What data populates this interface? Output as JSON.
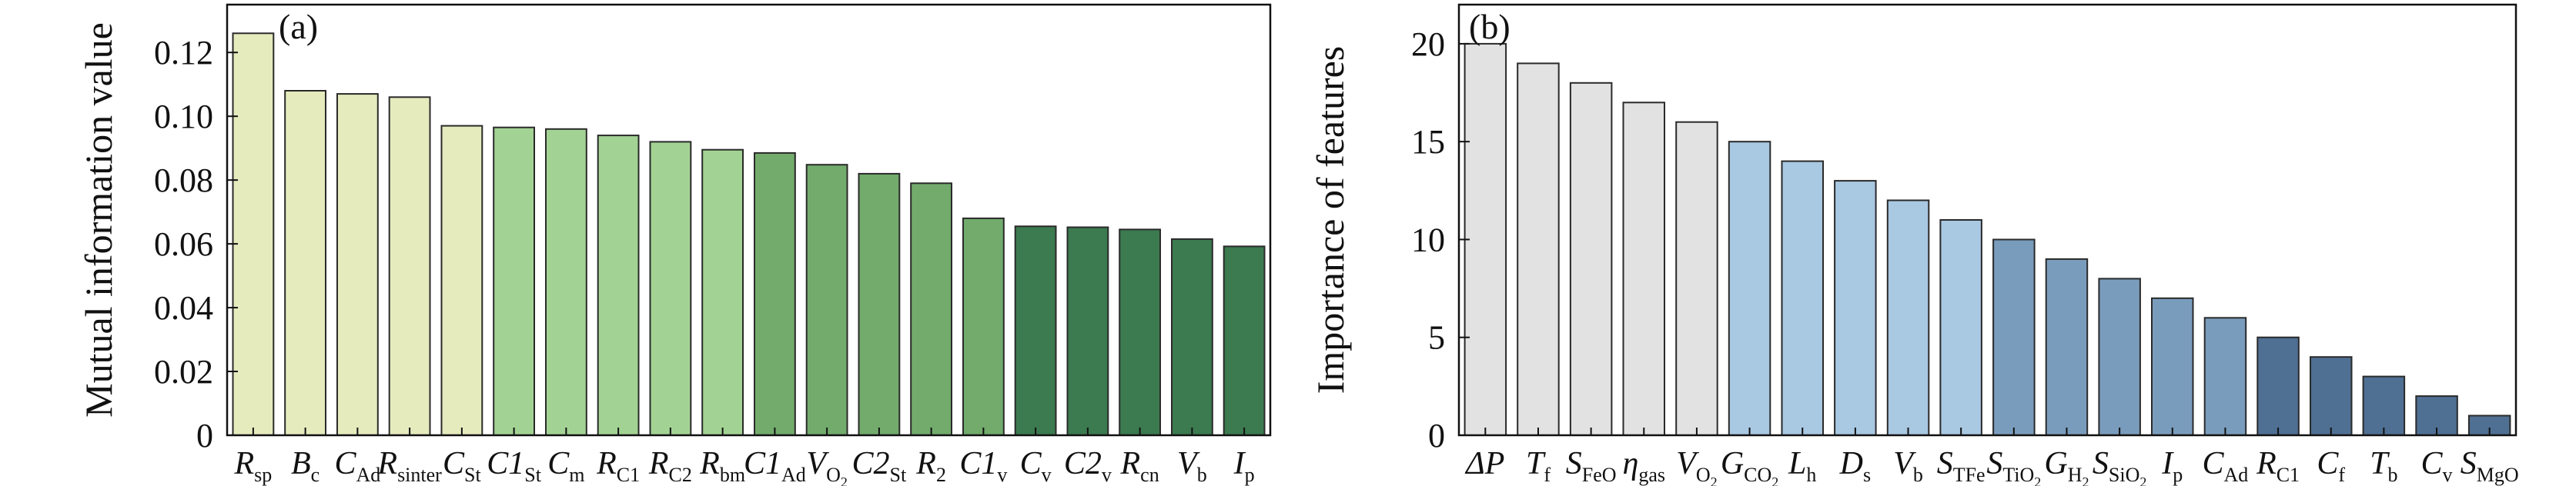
{
  "chart_data": [
    {
      "type": "bar",
      "panel_label": "(a)",
      "ylabel": "Mutual information value",
      "ylim": [
        0,
        0.135
      ],
      "yticks": [
        "0",
        "0.02",
        "0.04",
        "0.06",
        "0.08",
        "0.10",
        "0.12"
      ],
      "categories": [
        {
          "main": "R",
          "sub": "sp",
          "value": 0.126,
          "color": "#e6ebbe"
        },
        {
          "main": "B",
          "sub": "c",
          "value": 0.108,
          "color": "#e6ebbe"
        },
        {
          "main": "C",
          "sub": "Ad",
          "value": 0.107,
          "color": "#e6ebbe"
        },
        {
          "main": "R",
          "sub": "sinter",
          "value": 0.106,
          "color": "#e6ebbe"
        },
        {
          "main": "C",
          "sub": "St",
          "value": 0.097,
          "color": "#e6ebbe"
        },
        {
          "main": "C1",
          "sub": "St",
          "value": 0.0965,
          "color": "#a3d394"
        },
        {
          "main": "C",
          "sub": "m",
          "value": 0.096,
          "color": "#a3d394"
        },
        {
          "main": "R",
          "sub": "C1",
          "value": 0.094,
          "color": "#a3d394"
        },
        {
          "main": "R",
          "sub": "C2",
          "value": 0.092,
          "color": "#a3d394"
        },
        {
          "main": "R",
          "sub": "bm",
          "value": 0.0895,
          "color": "#a3d394"
        },
        {
          "main": "C1",
          "sub": "Ad",
          "value": 0.0885,
          "color": "#72ab6c"
        },
        {
          "main": "V",
          "sub": "O",
          "subsub": "2",
          "value": 0.0848,
          "color": "#72ab6c"
        },
        {
          "main": "C2",
          "sub": "St",
          "value": 0.082,
          "color": "#72ab6c"
        },
        {
          "main": "R",
          "sub": "2",
          "value": 0.079,
          "color": "#72ab6c"
        },
        {
          "main": "C1",
          "sub": "v",
          "value": 0.068,
          "color": "#72ab6c"
        },
        {
          "main": "C",
          "sub": "v",
          "value": 0.0655,
          "color": "#3c7a4f"
        },
        {
          "main": "C2",
          "sub": "v",
          "value": 0.0652,
          "color": "#3c7a4f"
        },
        {
          "main": "R",
          "sub": "cn",
          "value": 0.0645,
          "color": "#3c7a4f"
        },
        {
          "main": "V",
          "sub": "b",
          "value": 0.0615,
          "color": "#3c7a4f"
        },
        {
          "main": "I",
          "sub": "p",
          "value": 0.0592,
          "color": "#3c7a4f"
        }
      ]
    },
    {
      "type": "bar",
      "panel_label": "(b)",
      "ylabel": "Importance of features",
      "ylim": [
        0,
        22
      ],
      "yticks": [
        "0",
        "5",
        "10",
        "15",
        "20"
      ],
      "categories": [
        {
          "main": "ΔP",
          "sub": "",
          "value": 20,
          "color": "#e2e2e2"
        },
        {
          "main": "T",
          "sub": "f",
          "value": 19,
          "color": "#e2e2e2"
        },
        {
          "main": "S",
          "sub": "FeO",
          "value": 18,
          "color": "#e2e2e2"
        },
        {
          "main": "η",
          "sub": "gas",
          "value": 17,
          "color": "#e2e2e2"
        },
        {
          "main": "V",
          "sub": "O",
          "subsub": "2",
          "value": 16,
          "color": "#e2e2e2"
        },
        {
          "main": "G",
          "sub": "CO",
          "subsub": "2",
          "value": 15,
          "color": "#a9c8e2"
        },
        {
          "main": "L",
          "sub": "h",
          "value": 14,
          "color": "#a9c8e2"
        },
        {
          "main": "D",
          "sub": "s",
          "value": 13,
          "color": "#a9c8e2"
        },
        {
          "main": "V",
          "sub": "b",
          "value": 12,
          "color": "#a9c8e2"
        },
        {
          "main": "S",
          "sub": "TFe",
          "value": 11,
          "color": "#a9c8e2"
        },
        {
          "main": "S",
          "sub": "TiO",
          "subsub": "2",
          "value": 10,
          "color": "#7a9cbc"
        },
        {
          "main": "G",
          "sub": "H",
          "subsub": "2",
          "value": 9,
          "color": "#7a9cbc"
        },
        {
          "main": "S",
          "sub": "SiO",
          "subsub": "2",
          "value": 8,
          "color": "#7a9cbc"
        },
        {
          "main": "I",
          "sub": "p",
          "value": 7,
          "color": "#7a9cbc"
        },
        {
          "main": "C",
          "sub": "Ad",
          "value": 6,
          "color": "#7a9cbc"
        },
        {
          "main": "R",
          "sub": "C1",
          "value": 5,
          "color": "#4f6f93"
        },
        {
          "main": "C",
          "sub": "f",
          "value": 4,
          "color": "#4f6f93"
        },
        {
          "main": "T",
          "sub": "b",
          "value": 3,
          "color": "#4f6f93"
        },
        {
          "main": "C",
          "sub": "v",
          "value": 2,
          "color": "#4f6f93"
        },
        {
          "main": "S",
          "sub": "MgO",
          "value": 1,
          "color": "#4f6f93"
        }
      ]
    }
  ]
}
